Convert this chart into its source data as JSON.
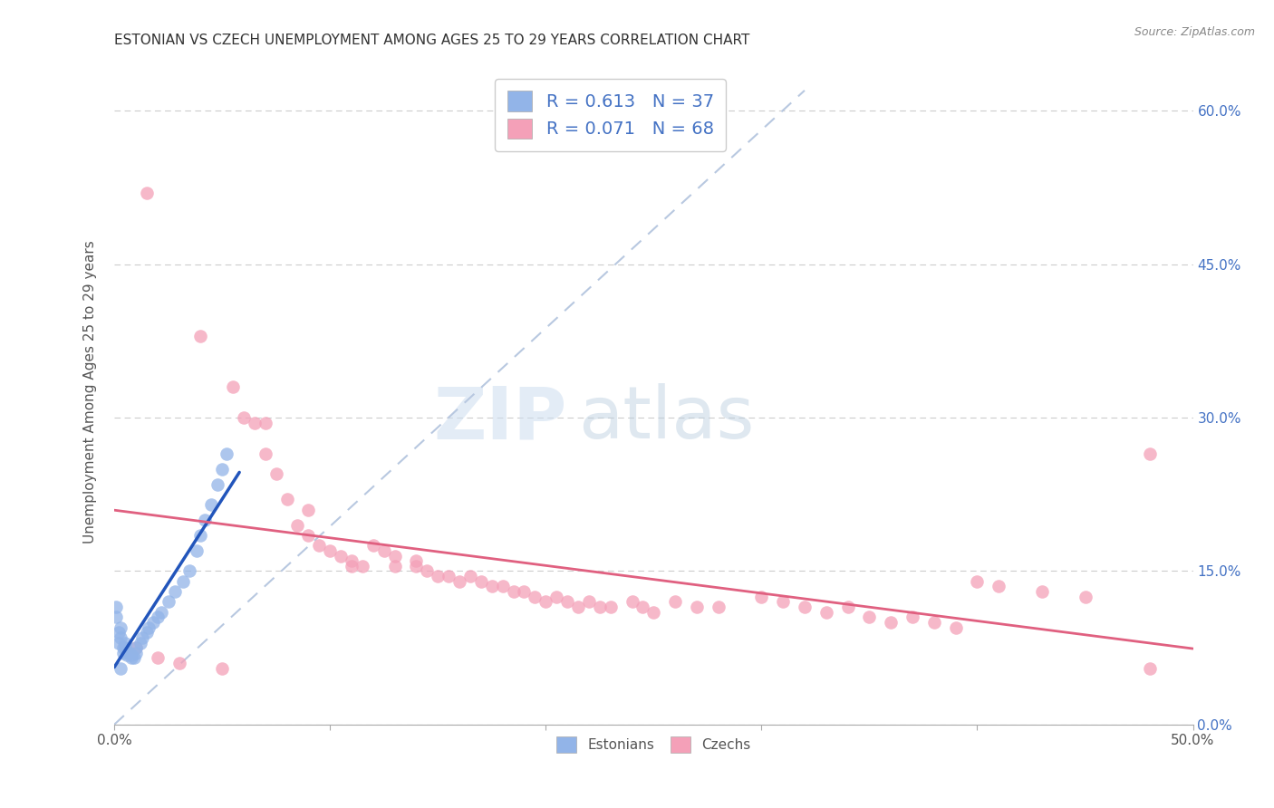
{
  "title": "ESTONIAN VS CZECH UNEMPLOYMENT AMONG AGES 25 TO 29 YEARS CORRELATION CHART",
  "source": "Source: ZipAtlas.com",
  "ylabel": "Unemployment Among Ages 25 to 29 years",
  "xlim": [
    0.0,
    0.5
  ],
  "ylim": [
    0.0,
    0.65
  ],
  "xtick_positions": [
    0.0,
    0.1,
    0.2,
    0.3,
    0.4,
    0.5
  ],
  "xticklabels_sparse": [
    "0.0%",
    "",
    "",
    "",
    "",
    "50.0%"
  ],
  "yticks_right": [
    0.0,
    0.15,
    0.3,
    0.45,
    0.6
  ],
  "ytick_right_labels": [
    "0.0%",
    "15.0%",
    "30.0%",
    "45.0%",
    "60.0%"
  ],
  "estonian_color": "#92b4e8",
  "czech_color": "#f4a0b8",
  "legend_label_color": "#4472c4",
  "watermark_zip_color": "#c8d8ee",
  "watermark_atlas_color": "#b0c8e8",
  "background_color": "#ffffff",
  "grid_color": "#cccccc",
  "estonian_line_color": "#2255bb",
  "czech_line_color": "#e06080",
  "diagonal_line_color": "#b8c8e0",
  "estonian_scatter": [
    [
      0.001,
      0.105
    ],
    [
      0.001,
      0.115
    ],
    [
      0.002,
      0.09
    ],
    [
      0.002,
      0.08
    ],
    [
      0.003,
      0.095
    ],
    [
      0.003,
      0.085
    ],
    [
      0.004,
      0.075
    ],
    [
      0.004,
      0.07
    ],
    [
      0.005,
      0.08
    ],
    [
      0.005,
      0.075
    ],
    [
      0.006,
      0.072
    ],
    [
      0.006,
      0.068
    ],
    [
      0.007,
      0.07
    ],
    [
      0.008,
      0.068
    ],
    [
      0.008,
      0.065
    ],
    [
      0.009,
      0.065
    ],
    [
      0.01,
      0.07
    ],
    [
      0.01,
      0.075
    ],
    [
      0.012,
      0.08
    ],
    [
      0.013,
      0.085
    ],
    [
      0.015,
      0.09
    ],
    [
      0.016,
      0.095
    ],
    [
      0.018,
      0.1
    ],
    [
      0.02,
      0.105
    ],
    [
      0.022,
      0.11
    ],
    [
      0.025,
      0.12
    ],
    [
      0.028,
      0.13
    ],
    [
      0.032,
      0.14
    ],
    [
      0.035,
      0.15
    ],
    [
      0.038,
      0.17
    ],
    [
      0.04,
      0.185
    ],
    [
      0.042,
      0.2
    ],
    [
      0.045,
      0.215
    ],
    [
      0.048,
      0.235
    ],
    [
      0.05,
      0.25
    ],
    [
      0.052,
      0.265
    ],
    [
      0.003,
      0.055
    ]
  ],
  "czech_scatter": [
    [
      0.015,
      0.52
    ],
    [
      0.04,
      0.38
    ],
    [
      0.055,
      0.33
    ],
    [
      0.06,
      0.3
    ],
    [
      0.07,
      0.295
    ],
    [
      0.07,
      0.265
    ],
    [
      0.075,
      0.245
    ],
    [
      0.08,
      0.22
    ],
    [
      0.09,
      0.21
    ],
    [
      0.065,
      0.295
    ],
    [
      0.085,
      0.195
    ],
    [
      0.09,
      0.185
    ],
    [
      0.095,
      0.175
    ],
    [
      0.1,
      0.17
    ],
    [
      0.105,
      0.165
    ],
    [
      0.11,
      0.16
    ],
    [
      0.11,
      0.155
    ],
    [
      0.115,
      0.155
    ],
    [
      0.12,
      0.175
    ],
    [
      0.125,
      0.17
    ],
    [
      0.13,
      0.165
    ],
    [
      0.13,
      0.155
    ],
    [
      0.14,
      0.16
    ],
    [
      0.14,
      0.155
    ],
    [
      0.145,
      0.15
    ],
    [
      0.15,
      0.145
    ],
    [
      0.155,
      0.145
    ],
    [
      0.16,
      0.14
    ],
    [
      0.165,
      0.145
    ],
    [
      0.17,
      0.14
    ],
    [
      0.175,
      0.135
    ],
    [
      0.18,
      0.135
    ],
    [
      0.185,
      0.13
    ],
    [
      0.19,
      0.13
    ],
    [
      0.195,
      0.125
    ],
    [
      0.2,
      0.12
    ],
    [
      0.205,
      0.125
    ],
    [
      0.21,
      0.12
    ],
    [
      0.215,
      0.115
    ],
    [
      0.22,
      0.12
    ],
    [
      0.225,
      0.115
    ],
    [
      0.23,
      0.115
    ],
    [
      0.24,
      0.12
    ],
    [
      0.245,
      0.115
    ],
    [
      0.25,
      0.11
    ],
    [
      0.26,
      0.12
    ],
    [
      0.27,
      0.115
    ],
    [
      0.28,
      0.115
    ],
    [
      0.3,
      0.125
    ],
    [
      0.31,
      0.12
    ],
    [
      0.32,
      0.115
    ],
    [
      0.33,
      0.11
    ],
    [
      0.34,
      0.115
    ],
    [
      0.35,
      0.105
    ],
    [
      0.36,
      0.1
    ],
    [
      0.37,
      0.105
    ],
    [
      0.38,
      0.1
    ],
    [
      0.39,
      0.095
    ],
    [
      0.4,
      0.14
    ],
    [
      0.41,
      0.135
    ],
    [
      0.43,
      0.13
    ],
    [
      0.45,
      0.125
    ],
    [
      0.48,
      0.265
    ],
    [
      0.01,
      0.075
    ],
    [
      0.02,
      0.065
    ],
    [
      0.03,
      0.06
    ],
    [
      0.05,
      0.055
    ],
    [
      0.48,
      0.055
    ]
  ],
  "diagonal_line": [
    [
      0.0,
      0.0
    ],
    [
      0.32,
      0.62
    ]
  ],
  "estonian_line_range": [
    0.0,
    0.058
  ],
  "czech_line_range": [
    0.0,
    0.5
  ],
  "title_fontsize": 11,
  "label_fontsize": 11,
  "tick_fontsize": 11
}
